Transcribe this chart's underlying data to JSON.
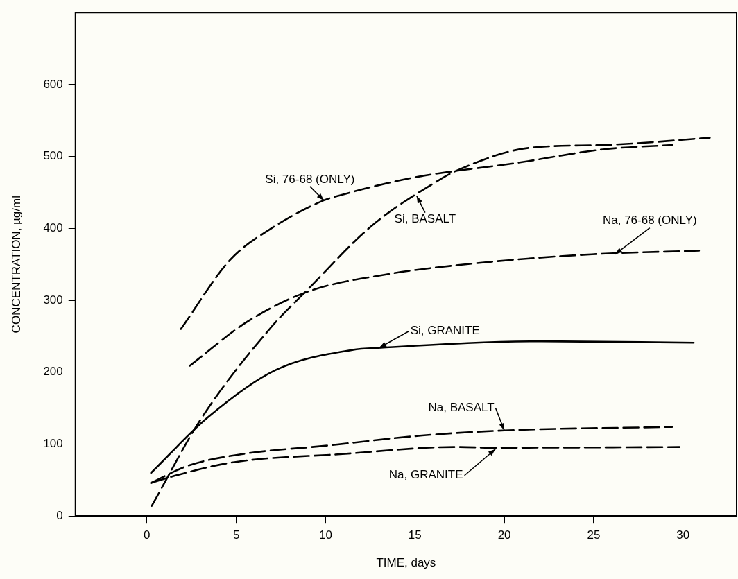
{
  "chart_data": {
    "type": "line",
    "xlabel": "TIME, days",
    "ylabel": "CONCENTRATION, µg/ml",
    "xlim": [
      -4,
      33
    ],
    "xticks": [
      0,
      5,
      10,
      15,
      20,
      25,
      30
    ],
    "ylim": [
      0,
      700
    ],
    "yticks": [
      0,
      100,
      200,
      300,
      400,
      500,
      600
    ],
    "grid": false,
    "legend": false,
    "marker": "none",
    "series": [
      {
        "color": "#000000",
        "line_style": "dashed",
        "x": [
          1.9,
          4.65,
          6.9,
          9.9,
          10.8,
          15.0,
          20.7,
          25.6,
          29.4
        ],
        "values": [
          260,
          356,
          399,
          439,
          446,
          471,
          491,
          510,
          516
        ]
      },
      {
        "color": "#000000",
        "line_style": "dashed",
        "x": [
          0.27,
          3.0,
          6.9,
          9.0,
          12.6,
          16.4,
          17.3,
          21.4,
          25.6,
          31.5
        ],
        "values": [
          14,
          134,
          261,
          315,
          404,
          468,
          480,
          512,
          516,
          526
        ]
      },
      {
        "color": "#000000",
        "line_style": "dashed",
        "x": [
          2.4,
          5.6,
          9.0,
          13.4,
          17.8,
          24.9,
          30.9
        ],
        "values": [
          209,
          270,
          312,
          336,
          350,
          364,
          369
        ]
      },
      {
        "color": "#000000",
        "line_style": "solid",
        "x": [
          0.23,
          3.4,
          7.2,
          11.5,
          13.1,
          22.1,
          30.6
        ],
        "values": [
          60,
          137,
          203,
          231,
          234,
          243,
          241
        ]
      },
      {
        "color": "#000000",
        "line_style": "dashed",
        "x": [
          0.23,
          2.3,
          5.3,
          10.1,
          15.4,
          20.0,
          29.4
        ],
        "values": [
          46,
          70,
          86,
          98,
          112,
          119,
          124
        ]
      },
      {
        "color": "#000000",
        "line_style": "dashed",
        "x": [
          0.23,
          1.7,
          4.9,
          10.8,
          17.3,
          19.5,
          29.8
        ],
        "values": [
          46,
          57,
          75,
          86,
          96,
          95,
          96
        ]
      }
    ],
    "annotations": [
      {
        "text": "Si, 76-68 (ONLY)",
        "x": 9.9,
        "y": 439
      },
      {
        "text": "Si, BASALT",
        "x": 15.1,
        "y": 445
      },
      {
        "text": "Na, 76-68 (ONLY)",
        "x": 26.2,
        "y": 364
      },
      {
        "text": "Si, GRANITE",
        "x": 13.0,
        "y": 234
      },
      {
        "text": "Na, BASALT",
        "x": 20.0,
        "y": 119
      },
      {
        "text": "Na, GRANITE",
        "x": 19.5,
        "y": 93
      }
    ]
  }
}
